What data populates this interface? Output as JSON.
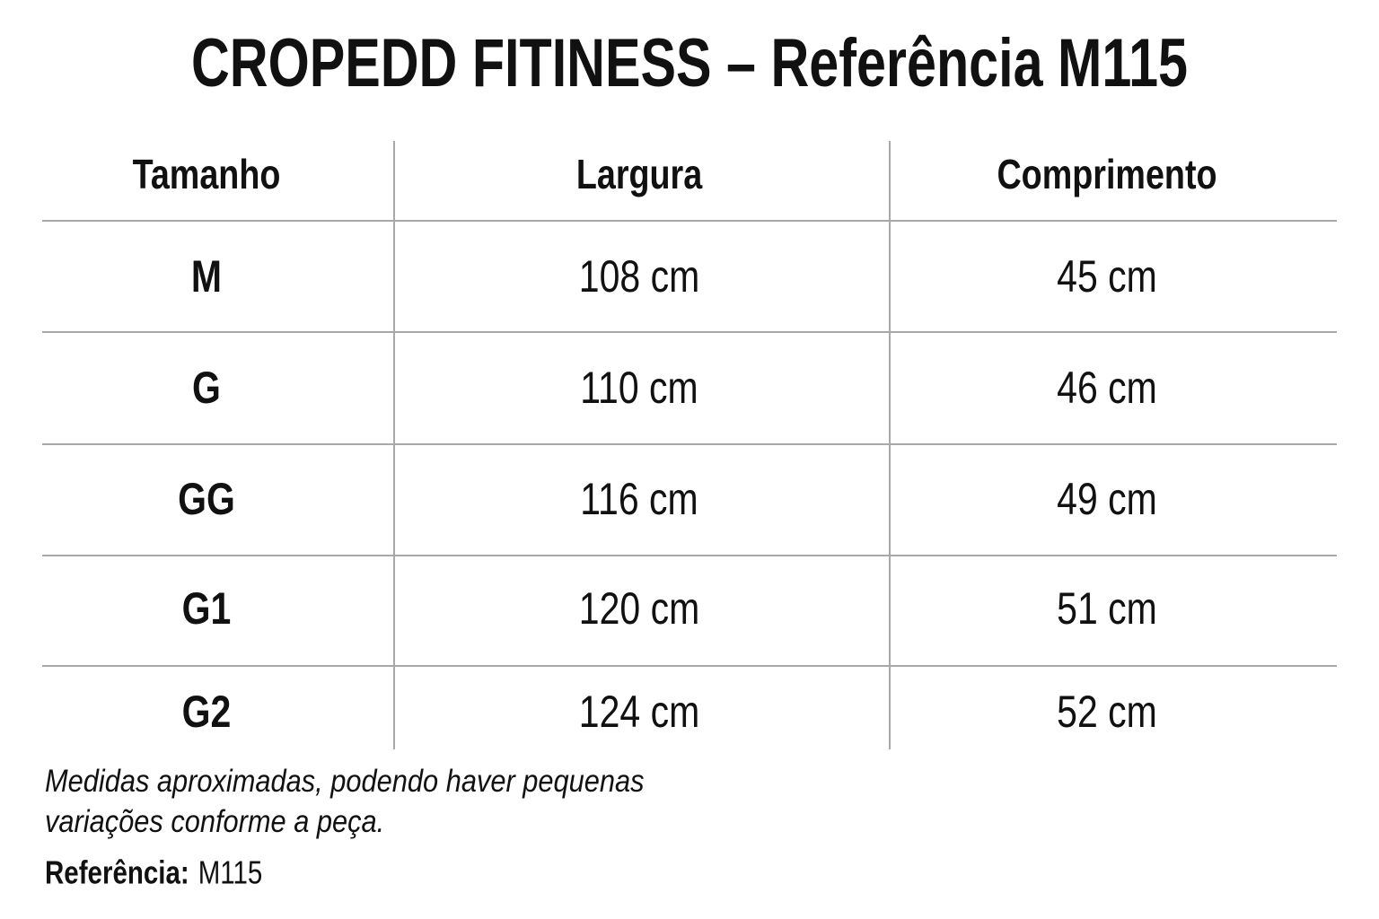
{
  "header": {
    "title": "CROPEDD FITINESS – Referência M115"
  },
  "table": {
    "columns": [
      "Tamanho",
      "Largura",
      "Comprimento"
    ],
    "rows": [
      [
        "M",
        "108 cm",
        "45 cm"
      ],
      [
        "G",
        "110 cm",
        "46 cm"
      ],
      [
        "GG",
        "116 cm",
        "49 cm"
      ],
      [
        "G1",
        "120 cm",
        "51 cm"
      ],
      [
        "G2",
        "124 cm",
        "52 cm"
      ]
    ]
  },
  "note": {
    "lines": [
      "Medidas aproximadas, podendo haver pequenas",
      "variações conforme a peça."
    ]
  },
  "reference": {
    "label": "Referência:",
    "value": "M115"
  }
}
